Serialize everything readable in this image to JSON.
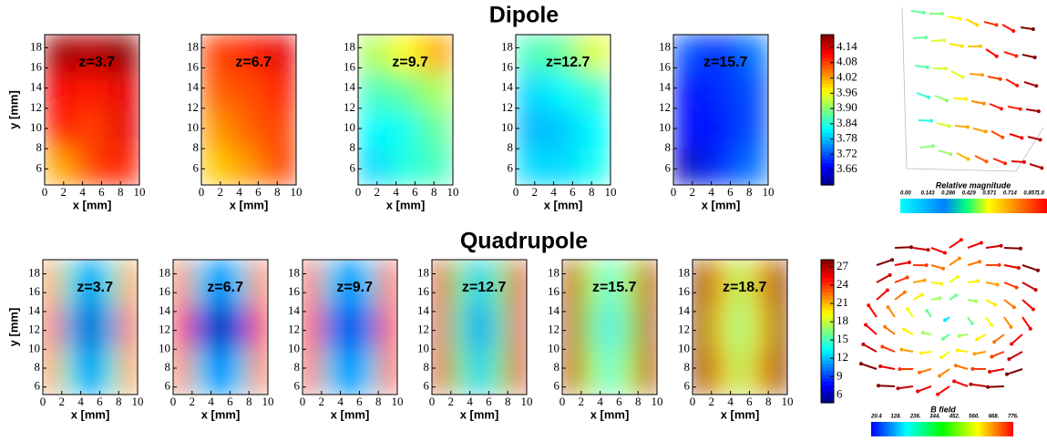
{
  "chart_data": [
    {
      "type": "heatmap",
      "title": "Dipole",
      "xlabel": "x [mm]",
      "ylabel": "y [mm]",
      "colormap": "jet",
      "xlim": [
        0,
        10
      ],
      "ylim": [
        4.4,
        19.3
      ],
      "xticks": [
        0,
        2,
        4,
        6,
        8,
        10
      ],
      "yticks": [
        6,
        8,
        10,
        12,
        14,
        16,
        18
      ],
      "clim": [
        3.6,
        4.19
      ],
      "colorbar_ticks": [
        3.66,
        3.72,
        3.78,
        3.84,
        {
          "value": 3.9,
          "label": "3.90"
        },
        3.96,
        4.02,
        4.08,
        4.14
      ],
      "panels": [
        {
          "label": "z=3.7",
          "values": [
            [
              4.17,
              4.16,
              4.18
            ],
            [
              4.12,
              4.1,
              4.13
            ],
            [
              4.1,
              4.08,
              4.13
            ],
            [
              4.02,
              4.08,
              4.1
            ]
          ]
        },
        {
          "label": "z=6.7",
          "values": [
            [
              4.08,
              4.1,
              4.13
            ],
            [
              4.06,
              4.07,
              4.1
            ],
            [
              4.03,
              4.06,
              4.08
            ],
            [
              4.0,
              4.03,
              4.08
            ]
          ]
        },
        {
          "label": "z=9.7",
          "values": [
            [
              3.92,
              3.97,
              4.02
            ],
            [
              3.86,
              3.88,
              3.92
            ],
            [
              3.82,
              3.83,
              3.88
            ],
            [
              3.8,
              3.84,
              3.86
            ]
          ]
        },
        {
          "label": "z=12.7",
          "values": [
            [
              3.86,
              3.88,
              3.95
            ],
            [
              3.8,
              3.82,
              3.85
            ],
            [
              3.78,
              3.79,
              3.82
            ],
            [
              3.8,
              3.8,
              3.83
            ]
          ]
        },
        {
          "label": "z=15.7",
          "values": [
            [
              3.72,
              3.7,
              3.74
            ],
            [
              3.68,
              3.7,
              3.72
            ],
            [
              3.68,
              3.69,
              3.72
            ],
            [
              3.64,
              3.7,
              3.74
            ]
          ]
        }
      ]
    },
    {
      "type": "heatmap",
      "title": "Quadrupole",
      "xlabel": "x [mm]",
      "ylabel": "y [mm]",
      "colormap": "jet",
      "xlim": [
        0,
        10
      ],
      "ylim": [
        5.2,
        19.5
      ],
      "xticks": [
        0,
        2,
        4,
        6,
        8,
        10
      ],
      "yticks": [
        6,
        8,
        10,
        12,
        14,
        16,
        18
      ],
      "clim": [
        4.7,
        28.2
      ],
      "colorbar_ticks": [
        6,
        9,
        12,
        15,
        18,
        21,
        24,
        27
      ],
      "panels": [
        {
          "label": "z=3.7",
          "values": [
            [
              22,
              14,
              9,
              14,
              22
            ],
            [
              23,
              12,
              6,
              12,
              23
            ],
            [
              22,
              14,
              9,
              14,
              22
            ]
          ]
        },
        {
          "label": "z=6.7",
          "values": [
            [
              23,
              13,
              8,
              13,
              23
            ],
            [
              24,
              10,
              5,
              10,
              24
            ],
            [
              23,
              13,
              8,
              13,
              23
            ]
          ]
        },
        {
          "label": "z=9.7",
          "values": [
            [
              24,
              13,
              9,
              13,
              24
            ],
            [
              24,
              11,
              7,
              11,
              24
            ],
            [
              24,
              13,
              9,
              13,
              24
            ]
          ]
        },
        {
          "label": "z=12.7",
          "values": [
            [
              26,
              16,
              12,
              16,
              26
            ],
            [
              26,
              15,
              10,
              15,
              26
            ],
            [
              26,
              16,
              12,
              16,
              26
            ]
          ]
        },
        {
          "label": "z=15.7",
          "values": [
            [
              27,
              18,
              14,
              18,
              27
            ],
            [
              27,
              17,
              13,
              17,
              27
            ],
            [
              27,
              18,
              14,
              18,
              27
            ]
          ]
        },
        {
          "label": "z=18.7",
          "values": [
            [
              28,
              21,
              17,
              21,
              28
            ],
            [
              28,
              20,
              16,
              20,
              28
            ],
            [
              28,
              21,
              17,
              21,
              28
            ]
          ]
        }
      ]
    }
  ],
  "vector_plots": {
    "dipole": {
      "colorbar_label": "Relative magnitude",
      "colorbar_ticks": [
        "0.00",
        "0.143",
        "0.286",
        "0.429",
        "0.571",
        "0.714",
        "0.857",
        "1.0"
      ]
    },
    "quadrupole": {
      "colorbar_label": "B field",
      "colorbar_ticks": [
        "20.4",
        "128.",
        "236.",
        "344.",
        "452.",
        "560.",
        "668.",
        "776."
      ]
    }
  }
}
